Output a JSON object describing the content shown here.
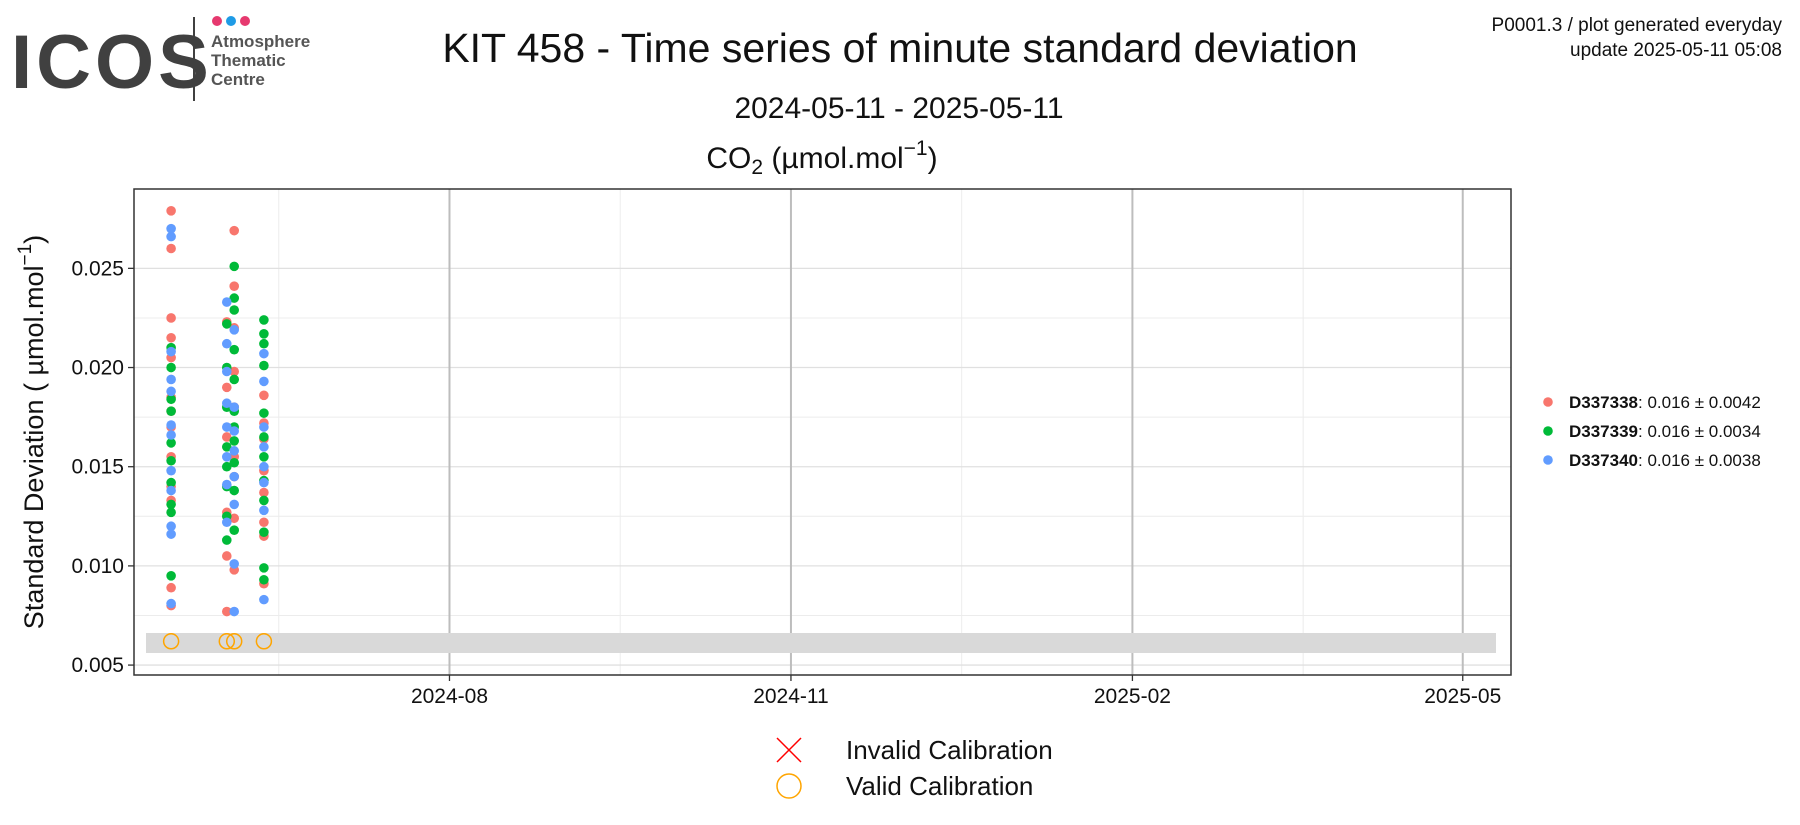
{
  "header": {
    "logo": "ICOS",
    "org_lines": [
      "Atmosphere",
      "Thematic",
      "Centre"
    ],
    "info_lines": [
      "P0001.3 / plot generated everyday",
      "update  2025-05-11 05:08"
    ]
  },
  "chart_data": {
    "type": "scatter",
    "title": "KIT 458 - Time series of minute standard deviation",
    "subtitle": "2024-05-11 - 2025-05-11",
    "plot_title_parts": [
      "CO",
      "2",
      " (µmol.mol",
      "−1",
      ")"
    ],
    "y_label_parts": [
      "Standard Deviation ( µmol.mol",
      "−1",
      ")"
    ],
    "xlim": [
      "2024-05-08",
      "2025-05-14"
    ],
    "xticks": [
      {
        "value": "2024-08-01",
        "label": "2024-08"
      },
      {
        "value": "2024-11-01",
        "label": "2024-11"
      },
      {
        "value": "2025-02-01",
        "label": "2025-02"
      },
      {
        "value": "2025-05-01",
        "label": "2025-05"
      }
    ],
    "ylim": [
      0.0045,
      0.029
    ],
    "yticks": [
      0.005,
      {
        "value": 0.01,
        "label": "0.010"
      },
      0.015,
      {
        "value": 0.02,
        "label": "0.020"
      },
      0.025
    ],
    "grid": true,
    "legend": "right",
    "series": [
      {
        "name": "D337338",
        "label": ": 0.016 ± 0.0042",
        "color": "#F8766D",
        "x": [
          "2024-05-18",
          "2024-05-18",
          "2024-05-18",
          "2024-05-18",
          "2024-05-18",
          "2024-05-18",
          "2024-05-18",
          "2024-05-18",
          "2024-05-18",
          "2024-05-18",
          "2024-05-18",
          "2024-05-18",
          "2024-05-18",
          "2024-06-02",
          "2024-06-02",
          "2024-06-02",
          "2024-06-02",
          "2024-06-02",
          "2024-06-02",
          "2024-06-04",
          "2024-06-04",
          "2024-06-04",
          "2024-06-04",
          "2024-06-04",
          "2024-06-04",
          "2024-06-04",
          "2024-06-04",
          "2024-06-04",
          "2024-06-12",
          "2024-06-12",
          "2024-06-12",
          "2024-06-12",
          "2024-06-12",
          "2024-06-12",
          "2024-06-12",
          "2024-06-12"
        ],
        "values": [
          0.0279,
          0.026,
          0.0225,
          0.0215,
          0.0205,
          0.0185,
          0.0178,
          0.017,
          0.0155,
          0.014,
          0.0133,
          0.0089,
          0.008,
          0.0223,
          0.019,
          0.0165,
          0.0127,
          0.0105,
          0.0077,
          0.0269,
          0.0241,
          0.022,
          0.0198,
          0.018,
          0.0155,
          0.0145,
          0.0124,
          0.0098,
          0.0186,
          0.0172,
          0.0164,
          0.0148,
          0.0137,
          0.0122,
          0.0115,
          0.0091
        ]
      },
      {
        "name": "D337339",
        "label": ": 0.016 ± 0.0034",
        "color": "#00BA38",
        "x": [
          "2024-05-18",
          "2024-05-18",
          "2024-05-18",
          "2024-05-18",
          "2024-05-18",
          "2024-05-18",
          "2024-05-18",
          "2024-05-18",
          "2024-05-18",
          "2024-05-18",
          "2024-06-02",
          "2024-06-02",
          "2024-06-02",
          "2024-06-02",
          "2024-06-02",
          "2024-06-02",
          "2024-06-02",
          "2024-06-02",
          "2024-06-04",
          "2024-06-04",
          "2024-06-04",
          "2024-06-04",
          "2024-06-04",
          "2024-06-04",
          "2024-06-04",
          "2024-06-04",
          "2024-06-04",
          "2024-06-04",
          "2024-06-04",
          "2024-06-12",
          "2024-06-12",
          "2024-06-12",
          "2024-06-12",
          "2024-06-12",
          "2024-06-12",
          "2024-06-12",
          "2024-06-12",
          "2024-06-12",
          "2024-06-12",
          "2024-06-12",
          "2024-06-12"
        ],
        "values": [
          0.021,
          0.02,
          0.0184,
          0.0178,
          0.0162,
          0.0153,
          0.0142,
          0.0131,
          0.0127,
          0.0095,
          0.0222,
          0.02,
          0.018,
          0.016,
          0.015,
          0.014,
          0.0125,
          0.0113,
          0.0251,
          0.0235,
          0.0229,
          0.0209,
          0.0194,
          0.0178,
          0.017,
          0.0163,
          0.0152,
          0.0138,
          0.0118,
          0.0224,
          0.0217,
          0.0212,
          0.0201,
          0.0177,
          0.0165,
          0.0155,
          0.0143,
          0.0133,
          0.0117,
          0.0099,
          0.0093
        ]
      },
      {
        "name": "D337340",
        "label": ": 0.016 ± 0.0038",
        "color": "#619CFF",
        "x": [
          "2024-05-18",
          "2024-05-18",
          "2024-05-18",
          "2024-05-18",
          "2024-05-18",
          "2024-05-18",
          "2024-05-18",
          "2024-05-18",
          "2024-05-18",
          "2024-05-18",
          "2024-05-18",
          "2024-05-18",
          "2024-06-02",
          "2024-06-02",
          "2024-06-02",
          "2024-06-02",
          "2024-06-02",
          "2024-06-02",
          "2024-06-02",
          "2024-06-02",
          "2024-06-04",
          "2024-06-04",
          "2024-06-04",
          "2024-06-04",
          "2024-06-04",
          "2024-06-04",
          "2024-06-04",
          "2024-06-04",
          "2024-06-12",
          "2024-06-12",
          "2024-06-12",
          "2024-06-12",
          "2024-06-12",
          "2024-06-12",
          "2024-06-12",
          "2024-06-12"
        ],
        "values": [
          0.027,
          0.0266,
          0.0208,
          0.0194,
          0.0188,
          0.0171,
          0.0166,
          0.0148,
          0.0138,
          0.012,
          0.0116,
          0.0081,
          0.0233,
          0.0212,
          0.0198,
          0.0182,
          0.017,
          0.0155,
          0.0141,
          0.0122,
          0.0219,
          0.018,
          0.0168,
          0.0158,
          0.0145,
          0.0131,
          0.0101,
          0.0077,
          0.0207,
          0.0193,
          0.017,
          0.016,
          0.015,
          0.0142,
          0.0128,
          0.0083
        ]
      }
    ],
    "calibrations": [
      {
        "name": "Invalid Calibration",
        "color": "#FF0000",
        "marker": "x",
        "x": [],
        "values": []
      },
      {
        "name": "Valid Calibration",
        "color": "#FFA500",
        "marker": "circle",
        "x": [
          "2024-05-18",
          "2024-06-02",
          "2024-06-04",
          "2024-06-12"
        ],
        "values": [
          0.0062,
          0.0062,
          0.0062,
          0.0062
        ]
      }
    ]
  }
}
